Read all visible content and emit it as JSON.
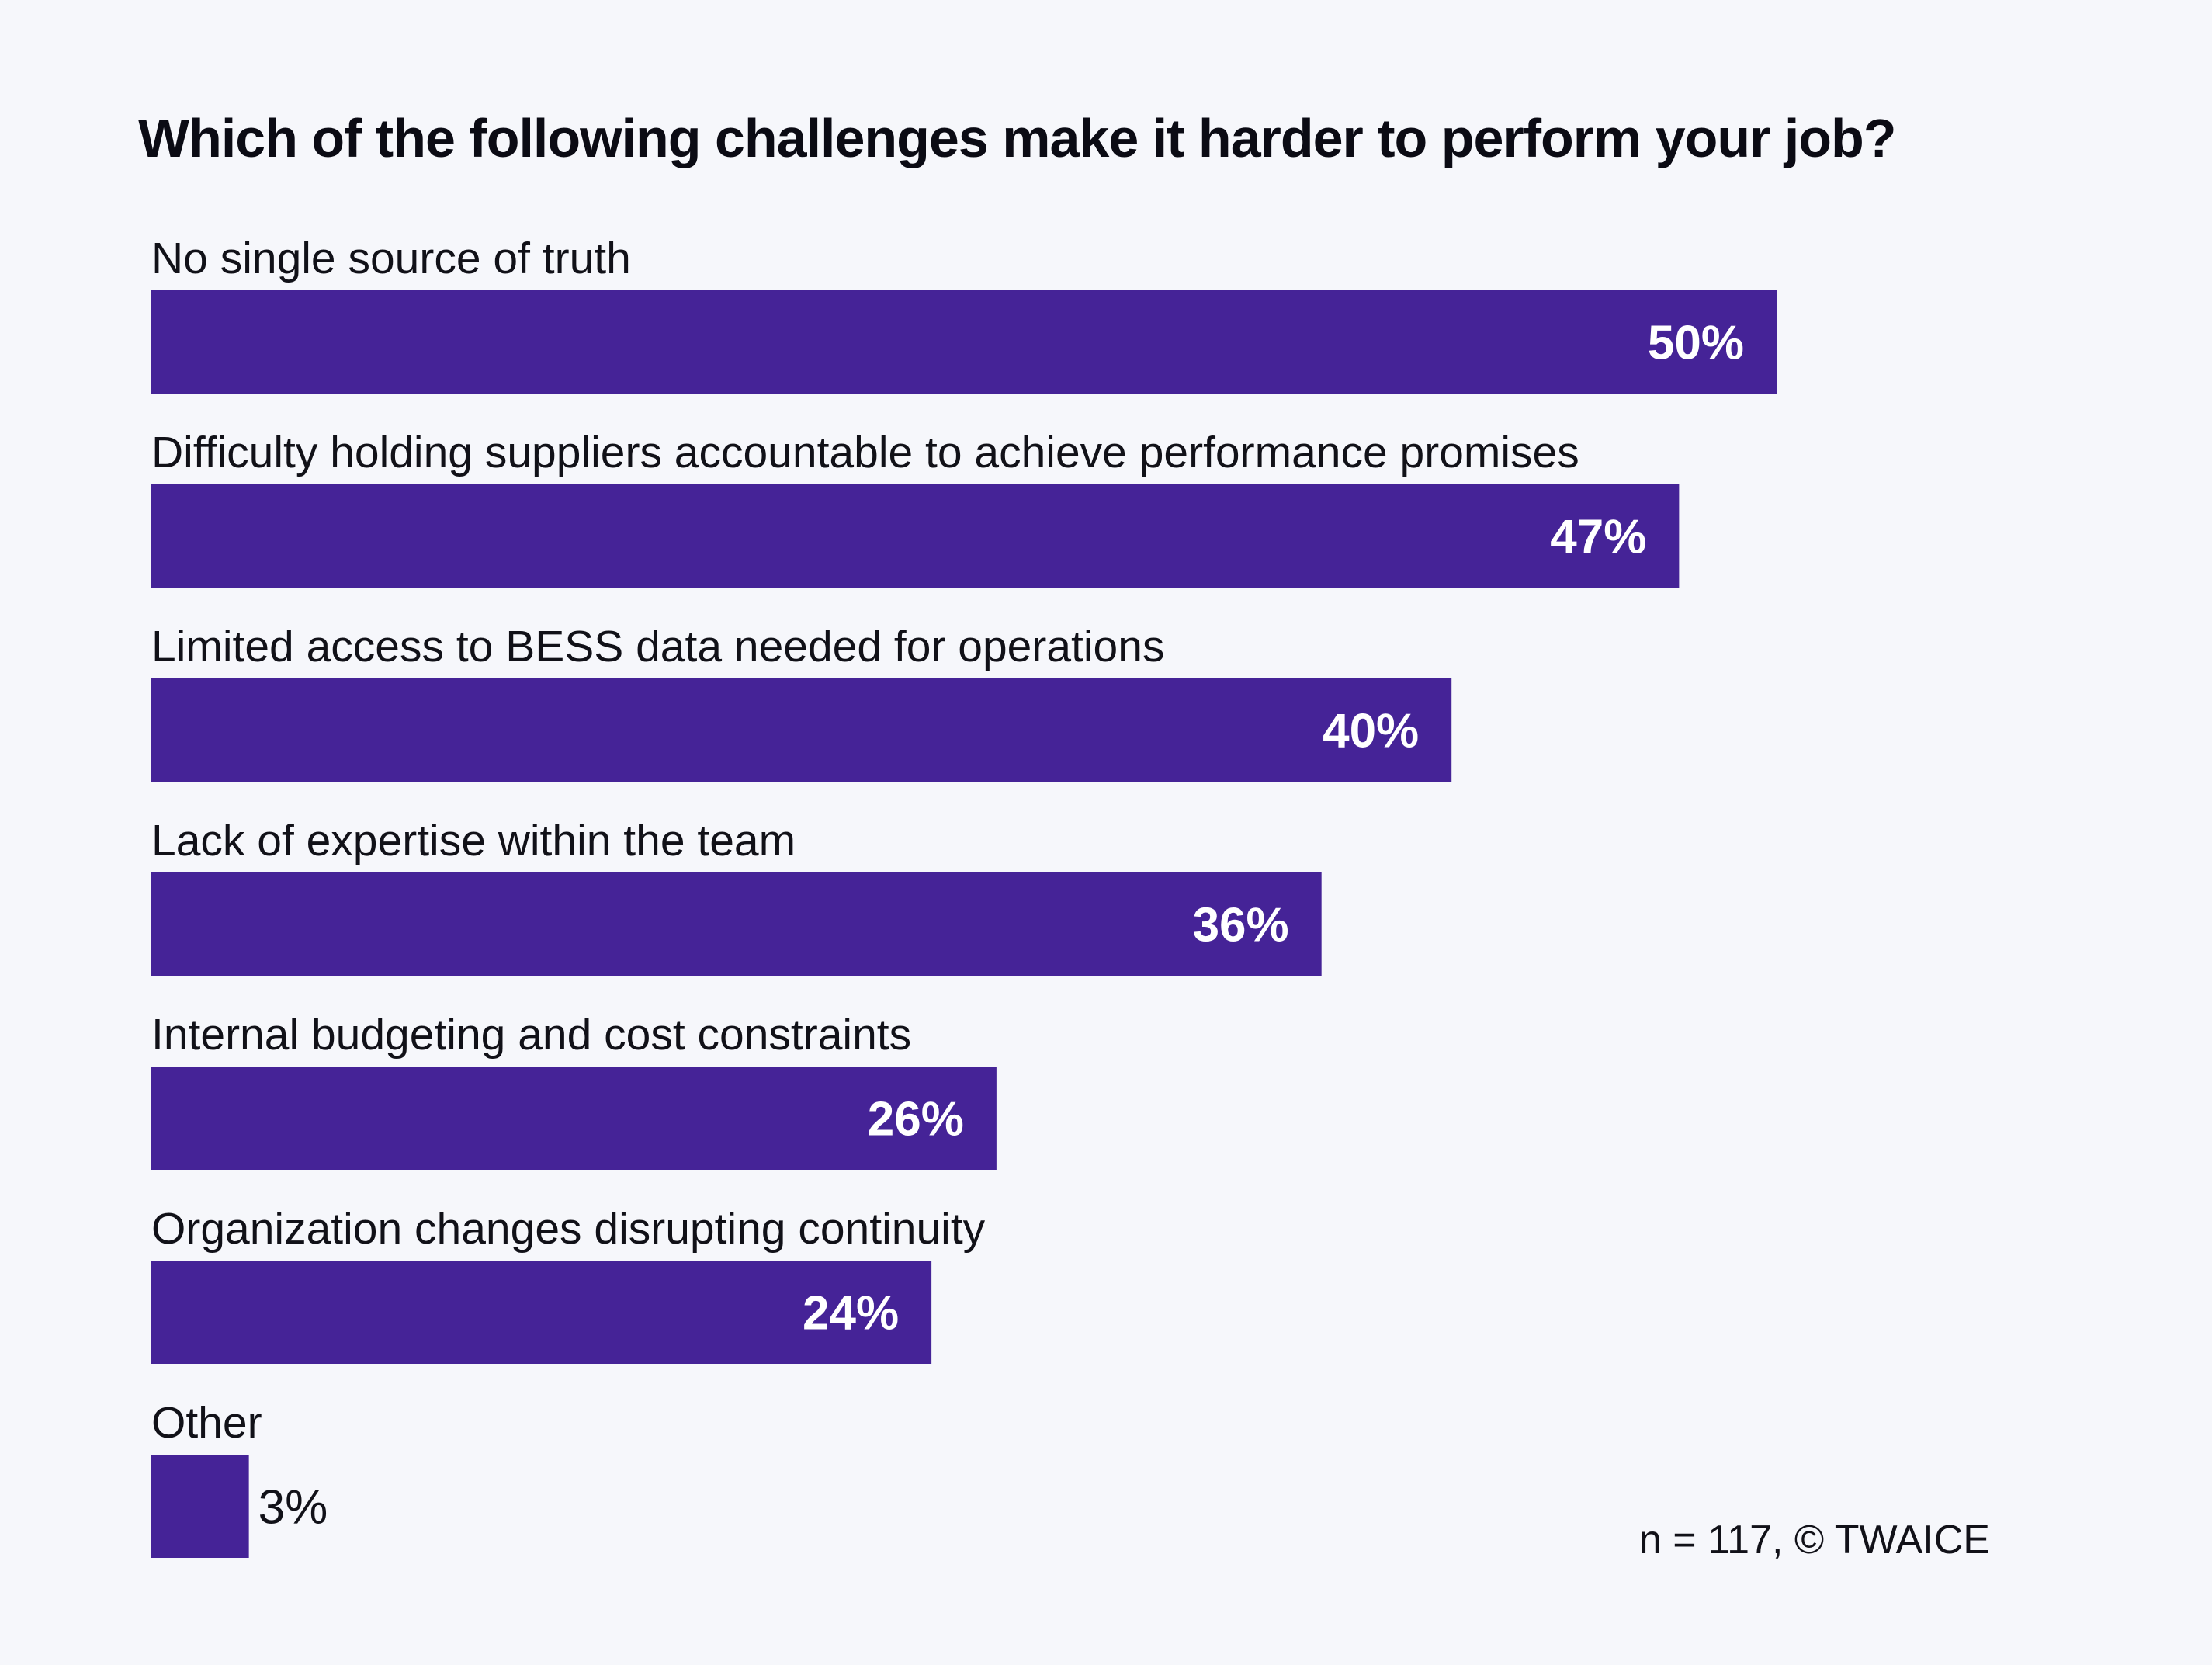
{
  "chart_data": {
    "type": "bar",
    "orientation": "horizontal",
    "title": "Which of the following challenges make it harder to perform your job?",
    "categories": [
      "No single source of truth",
      "Difficulty holding suppliers accountable to achieve performance promises",
      "Limited access to BESS data needed for operations",
      "Lack of expertise within the team",
      "Internal budgeting and cost constraints",
      "Organization changes disrupting continuity",
      "Other"
    ],
    "values": [
      50,
      47,
      40,
      36,
      26,
      24,
      3
    ],
    "value_labels": [
      "50%",
      "47%",
      "40%",
      "36%",
      "26%",
      "24%",
      "3%"
    ],
    "unit": "%",
    "xlim": [
      0,
      50
    ],
    "grid": false,
    "legend": "none",
    "bar_color": "#452397"
  },
  "footnote": "n = 117, © TWAICE"
}
